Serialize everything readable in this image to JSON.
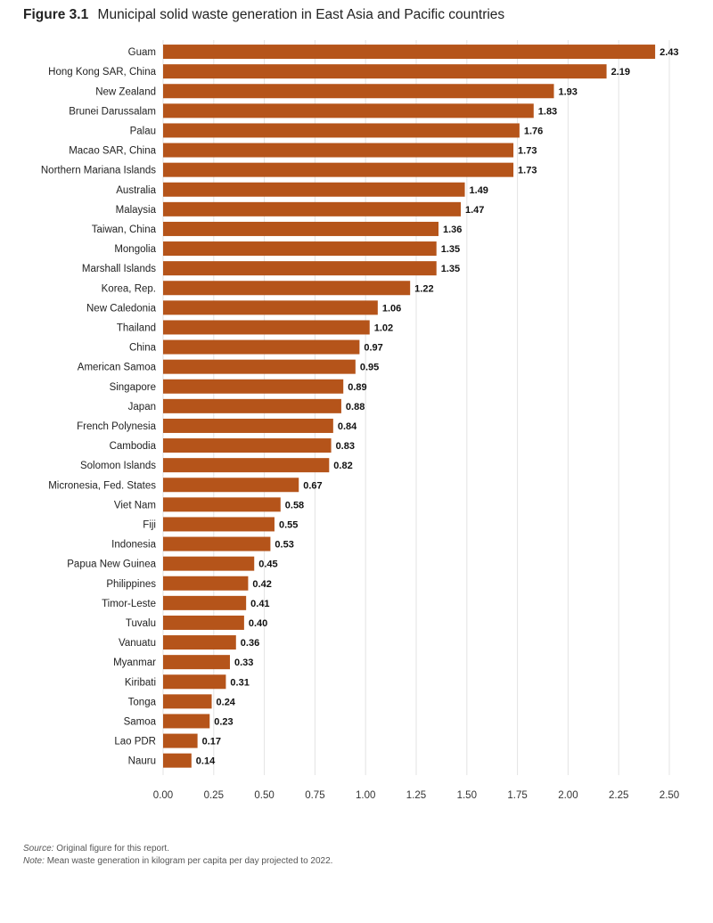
{
  "figure": {
    "label": "Figure 3.1",
    "title": "Municipal solid waste generation in East Asia and Pacific countries"
  },
  "notes": {
    "source_label": "Source:",
    "source_text": "Original figure for this report.",
    "note_label": "Note:",
    "note_text": "Mean waste generation in kilogram per capita per day projected to 2022."
  },
  "colors": {
    "bar": "#B5541A",
    "grid": "#E3E3E3",
    "label": "#222222"
  },
  "chart_data": {
    "type": "bar",
    "orientation": "horizontal",
    "title": "Municipal solid waste generation in East Asia and Pacific countries",
    "xlabel": "",
    "ylabel": "",
    "xlim": [
      0,
      2.5
    ],
    "grid": true,
    "ticks": [
      "0.00",
      "0.25",
      "0.50",
      "0.75",
      "1.00",
      "1.25",
      "1.50",
      "1.75",
      "2.00",
      "2.25",
      "2.50"
    ],
    "categories": [
      "Guam",
      "Hong Kong SAR, China",
      "New Zealand",
      "Brunei Darussalam",
      "Palau",
      "Macao SAR, China",
      "Northern Mariana Islands",
      "Australia",
      "Malaysia",
      "Taiwan, China",
      "Mongolia",
      "Marshall Islands",
      "Korea, Rep.",
      "New Caledonia",
      "Thailand",
      "China",
      "American Samoa",
      "Singapore",
      "Japan",
      "French Polynesia",
      "Cambodia",
      "Solomon Islands",
      "Micronesia, Fed. States",
      "Viet Nam",
      "Fiji",
      "Indonesia",
      "Papua New Guinea",
      "Philippines",
      "Timor-Leste",
      "Tuvalu",
      "Vanuatu",
      "Myanmar",
      "Kiribati",
      "Tonga",
      "Samoa",
      "Lao PDR",
      "Nauru"
    ],
    "values": [
      2.43,
      2.19,
      1.93,
      1.83,
      1.76,
      1.73,
      1.73,
      1.49,
      1.47,
      1.36,
      1.35,
      1.35,
      1.22,
      1.06,
      1.02,
      0.97,
      0.95,
      0.89,
      0.88,
      0.84,
      0.83,
      0.82,
      0.67,
      0.58,
      0.55,
      0.53,
      0.45,
      0.42,
      0.41,
      0.4,
      0.36,
      0.33,
      0.31,
      0.24,
      0.23,
      0.17,
      0.14
    ],
    "value_labels": [
      "2.43",
      "2.19",
      "1.93",
      "1.83",
      "1.76",
      "1.73",
      "1.73",
      "1.49",
      "1.47",
      "1.36",
      "1.35",
      "1.35",
      "1.22",
      "1.06",
      "1.02",
      "0.97",
      "0.95",
      "0.89",
      "0.88",
      "0.84",
      "0.83",
      "0.82",
      "0.67",
      "0.58",
      "0.55",
      "0.53",
      "0.45",
      "0.42",
      "0.41",
      "0.40",
      "0.36",
      "0.33",
      "0.31",
      "0.24",
      "0.23",
      "0.17",
      "0.14"
    ]
  }
}
